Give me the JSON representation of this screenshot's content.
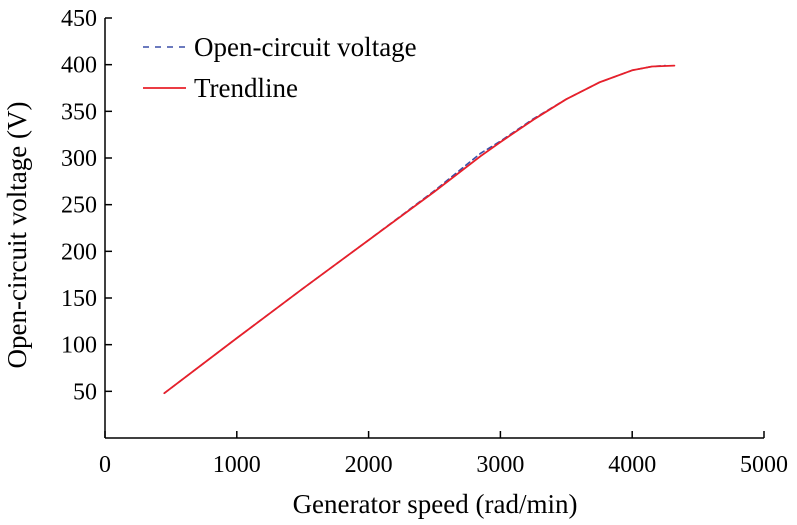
{
  "chart_data": {
    "type": "line",
    "title": "",
    "xlabel": "Generator speed (rad/min)",
    "ylabel": "Open-circuit voltage (V)",
    "xlim": [
      0,
      5000
    ],
    "ylim": [
      0,
      450
    ],
    "xticks": [
      0,
      1000,
      2000,
      3000,
      4000,
      5000
    ],
    "yticks": [
      50,
      100,
      150,
      200,
      250,
      300,
      350,
      400,
      450
    ],
    "grid": false,
    "legend_position": "top-left",
    "series": [
      {
        "name": "Open-circuit voltage",
        "color": "#3a4fa8",
        "style": "dashed",
        "x": [
          450,
          1000,
          1500,
          2000,
          2500,
          2850,
          3000,
          3250,
          3500,
          3750,
          4000,
          4150,
          4250
        ],
        "y": [
          48,
          107,
          160,
          212,
          265,
          305,
          318,
          342,
          363,
          381,
          394,
          398,
          399
        ]
      },
      {
        "name": "Trendline",
        "color": "#e8202a",
        "style": "solid",
        "x": [
          450,
          1000,
          1500,
          2000,
          2500,
          2850,
          3000,
          3250,
          3500,
          3750,
          4000,
          4150,
          4320
        ],
        "y": [
          48,
          107,
          160,
          212,
          264,
          302,
          317,
          341,
          363,
          381,
          394,
          398,
          399
        ]
      }
    ]
  }
}
